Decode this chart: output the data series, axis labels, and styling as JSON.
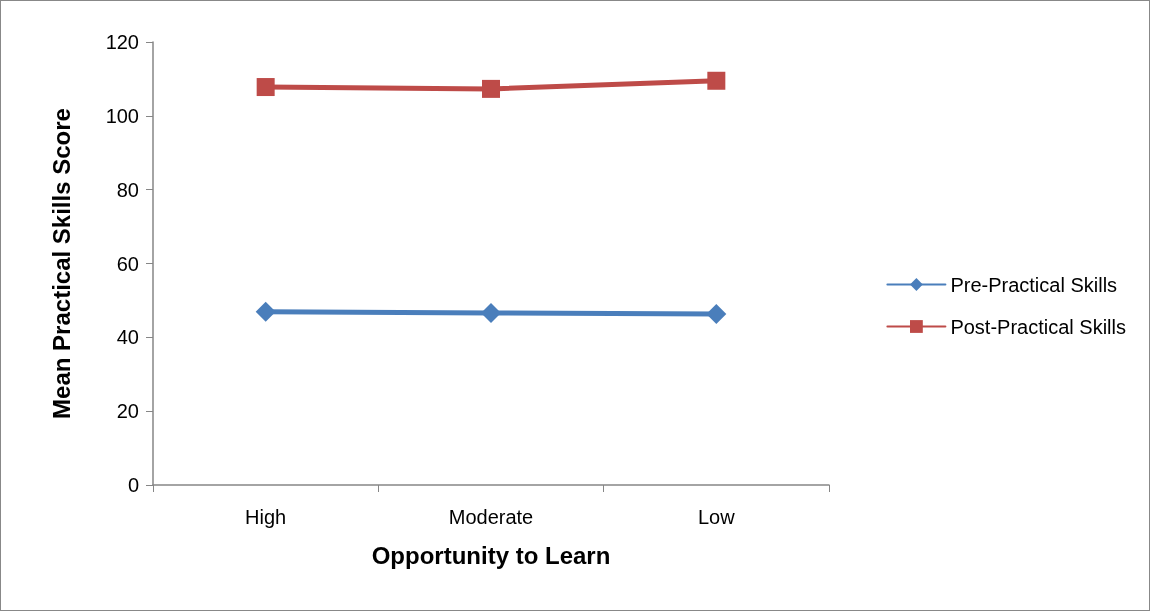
{
  "chart_data": {
    "type": "line",
    "xlabel": "Opportunity to Learn",
    "ylabel": "Mean Practical Skills Score",
    "categories": [
      "High",
      "Moderate",
      "Low"
    ],
    "series": [
      {
        "name": "Pre-Practical Skills",
        "color": "#4a7ebb",
        "values": [
          46.9,
          46.6,
          46.3
        ],
        "marker": "diamond"
      },
      {
        "name": "Post-Practical Skills",
        "color": "#be4b48",
        "values": [
          107.8,
          107.3,
          109.5
        ],
        "marker": "square"
      }
    ],
    "ylim": [
      0,
      120
    ],
    "yticks": [
      0,
      20,
      40,
      60,
      80,
      100,
      120
    ],
    "grid": false,
    "legend": "right",
    "line_style": "solid"
  }
}
